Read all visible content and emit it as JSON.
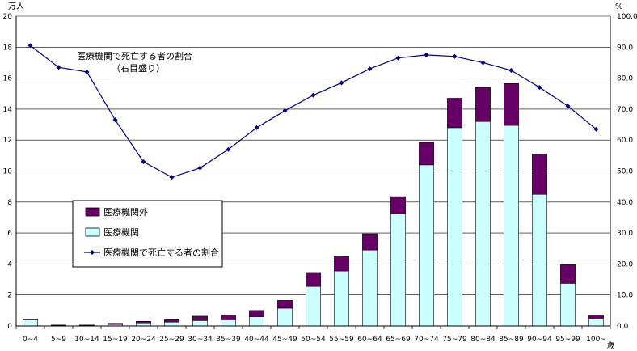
{
  "chart_data": {
    "type": "bar",
    "stacked": true,
    "categories": [
      "0~4",
      "5~9",
      "10~14",
      "15~19",
      "20~24",
      "25~29",
      "30~34",
      "35~39",
      "40~44",
      "45~49",
      "50~54",
      "55~59",
      "60~64",
      "65~69",
      "70~74",
      "75~79",
      "80~84",
      "85~89",
      "90~94",
      "95~99",
      "100~"
    ],
    "category_suffix": "歳",
    "series": [
      {
        "name": "医療機関",
        "axis": "left",
        "color": "#ccffff",
        "values": [
          0.4,
          0.03,
          0.03,
          0.1,
          0.2,
          0.25,
          0.35,
          0.4,
          0.6,
          1.15,
          2.55,
          3.55,
          4.9,
          7.25,
          10.4,
          12.8,
          13.2,
          12.95,
          8.5,
          2.75,
          0.45
        ]
      },
      {
        "name": "医療機関外",
        "axis": "left",
        "color": "#660066",
        "values": [
          0.05,
          0.03,
          0.03,
          0.07,
          0.1,
          0.15,
          0.28,
          0.3,
          0.4,
          0.5,
          0.9,
          0.95,
          1.05,
          1.1,
          1.45,
          1.9,
          2.2,
          2.7,
          2.6,
          1.2,
          0.25
        ]
      },
      {
        "name": "医療機関で死亡する者の割合",
        "type": "line",
        "axis": "right",
        "color": "#000080",
        "values": [
          90.5,
          83.5,
          82.0,
          66.5,
          53.0,
          48.0,
          51.0,
          57.0,
          64.0,
          69.5,
          74.5,
          78.5,
          83.0,
          86.5,
          87.5,
          87.0,
          85.0,
          82.5,
          77.0,
          71.0,
          63.5
        ]
      }
    ],
    "y_left": {
      "unit": "万人",
      "ticks": [
        "0",
        "2",
        "4",
        "6",
        "8",
        "10",
        "12",
        "14",
        "16",
        "18",
        "20"
      ],
      "ylim": [
        0,
        20
      ]
    },
    "y_right": {
      "unit": "%",
      "ticks": [
        "0.0",
        "10.0",
        "20.0",
        "30.0",
        "40.0",
        "50.0",
        "60.0",
        "70.0",
        "80.0",
        "90.0",
        "100.0"
      ],
      "ylim": [
        0,
        100
      ]
    },
    "grid": true,
    "annotation": {
      "line1": "医療機関で死亡する者の割合",
      "line2": "（右目盛り）"
    },
    "legend": {
      "placement": "center-left",
      "items": [
        {
          "label": "医療機関外",
          "kind": "box",
          "color": "#660066"
        },
        {
          "label": "医療機関",
          "kind": "box",
          "color": "#ccffff"
        },
        {
          "label": "医療機関で死亡する者の割合",
          "kind": "line",
          "color": "#000080"
        }
      ]
    }
  }
}
